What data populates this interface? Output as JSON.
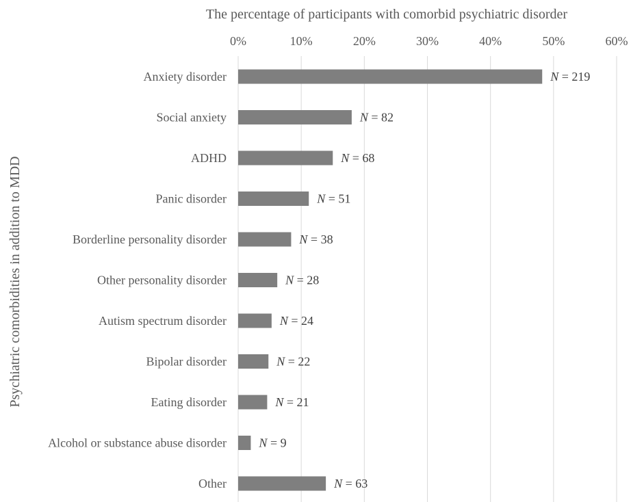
{
  "chart_data": {
    "type": "bar",
    "orientation": "horizontal",
    "title": "",
    "xlabel": "The percentage of participants with comorbid psychiatric disorder",
    "ylabel": "Psychiatric comorbidities in addition to MDD",
    "xlim": [
      0,
      60
    ],
    "x_ticks": [
      "0%",
      "10%",
      "20%",
      "30%",
      "40%",
      "50%",
      "60%"
    ],
    "x_axis_position": "top",
    "grid": true,
    "bar_color": "#7f7f7f",
    "categories": [
      "Anxiety disorder",
      "Social anxiety",
      "ADHD",
      "Panic disorder",
      "Borderline personality disorder",
      "Other personality disorder",
      "Autism spectrum disorder",
      "Bipolar disorder",
      "Eating disorder",
      "Alcohol or substance abuse disorder",
      "Other"
    ],
    "values": [
      48.2,
      18.0,
      15.0,
      11.2,
      8.4,
      6.2,
      5.3,
      4.8,
      4.6,
      2.0,
      13.9
    ],
    "n_labels": [
      {
        "symbol": "N",
        "text": " = 219"
      },
      {
        "symbol": "N",
        "text": " = 82"
      },
      {
        "symbol": "N",
        "text": " = 68"
      },
      {
        "symbol": "N",
        "text": " = 51"
      },
      {
        "symbol": "N",
        "text": " = 38"
      },
      {
        "symbol": "N",
        "text": " = 28"
      },
      {
        "symbol": "N",
        "text": " = 24"
      },
      {
        "symbol": "N",
        "text": " = 22"
      },
      {
        "symbol": "N",
        "text": " = 21"
      },
      {
        "symbol": "N",
        "text": " = 9"
      },
      {
        "symbol": "N",
        "text": " = 63"
      }
    ]
  }
}
